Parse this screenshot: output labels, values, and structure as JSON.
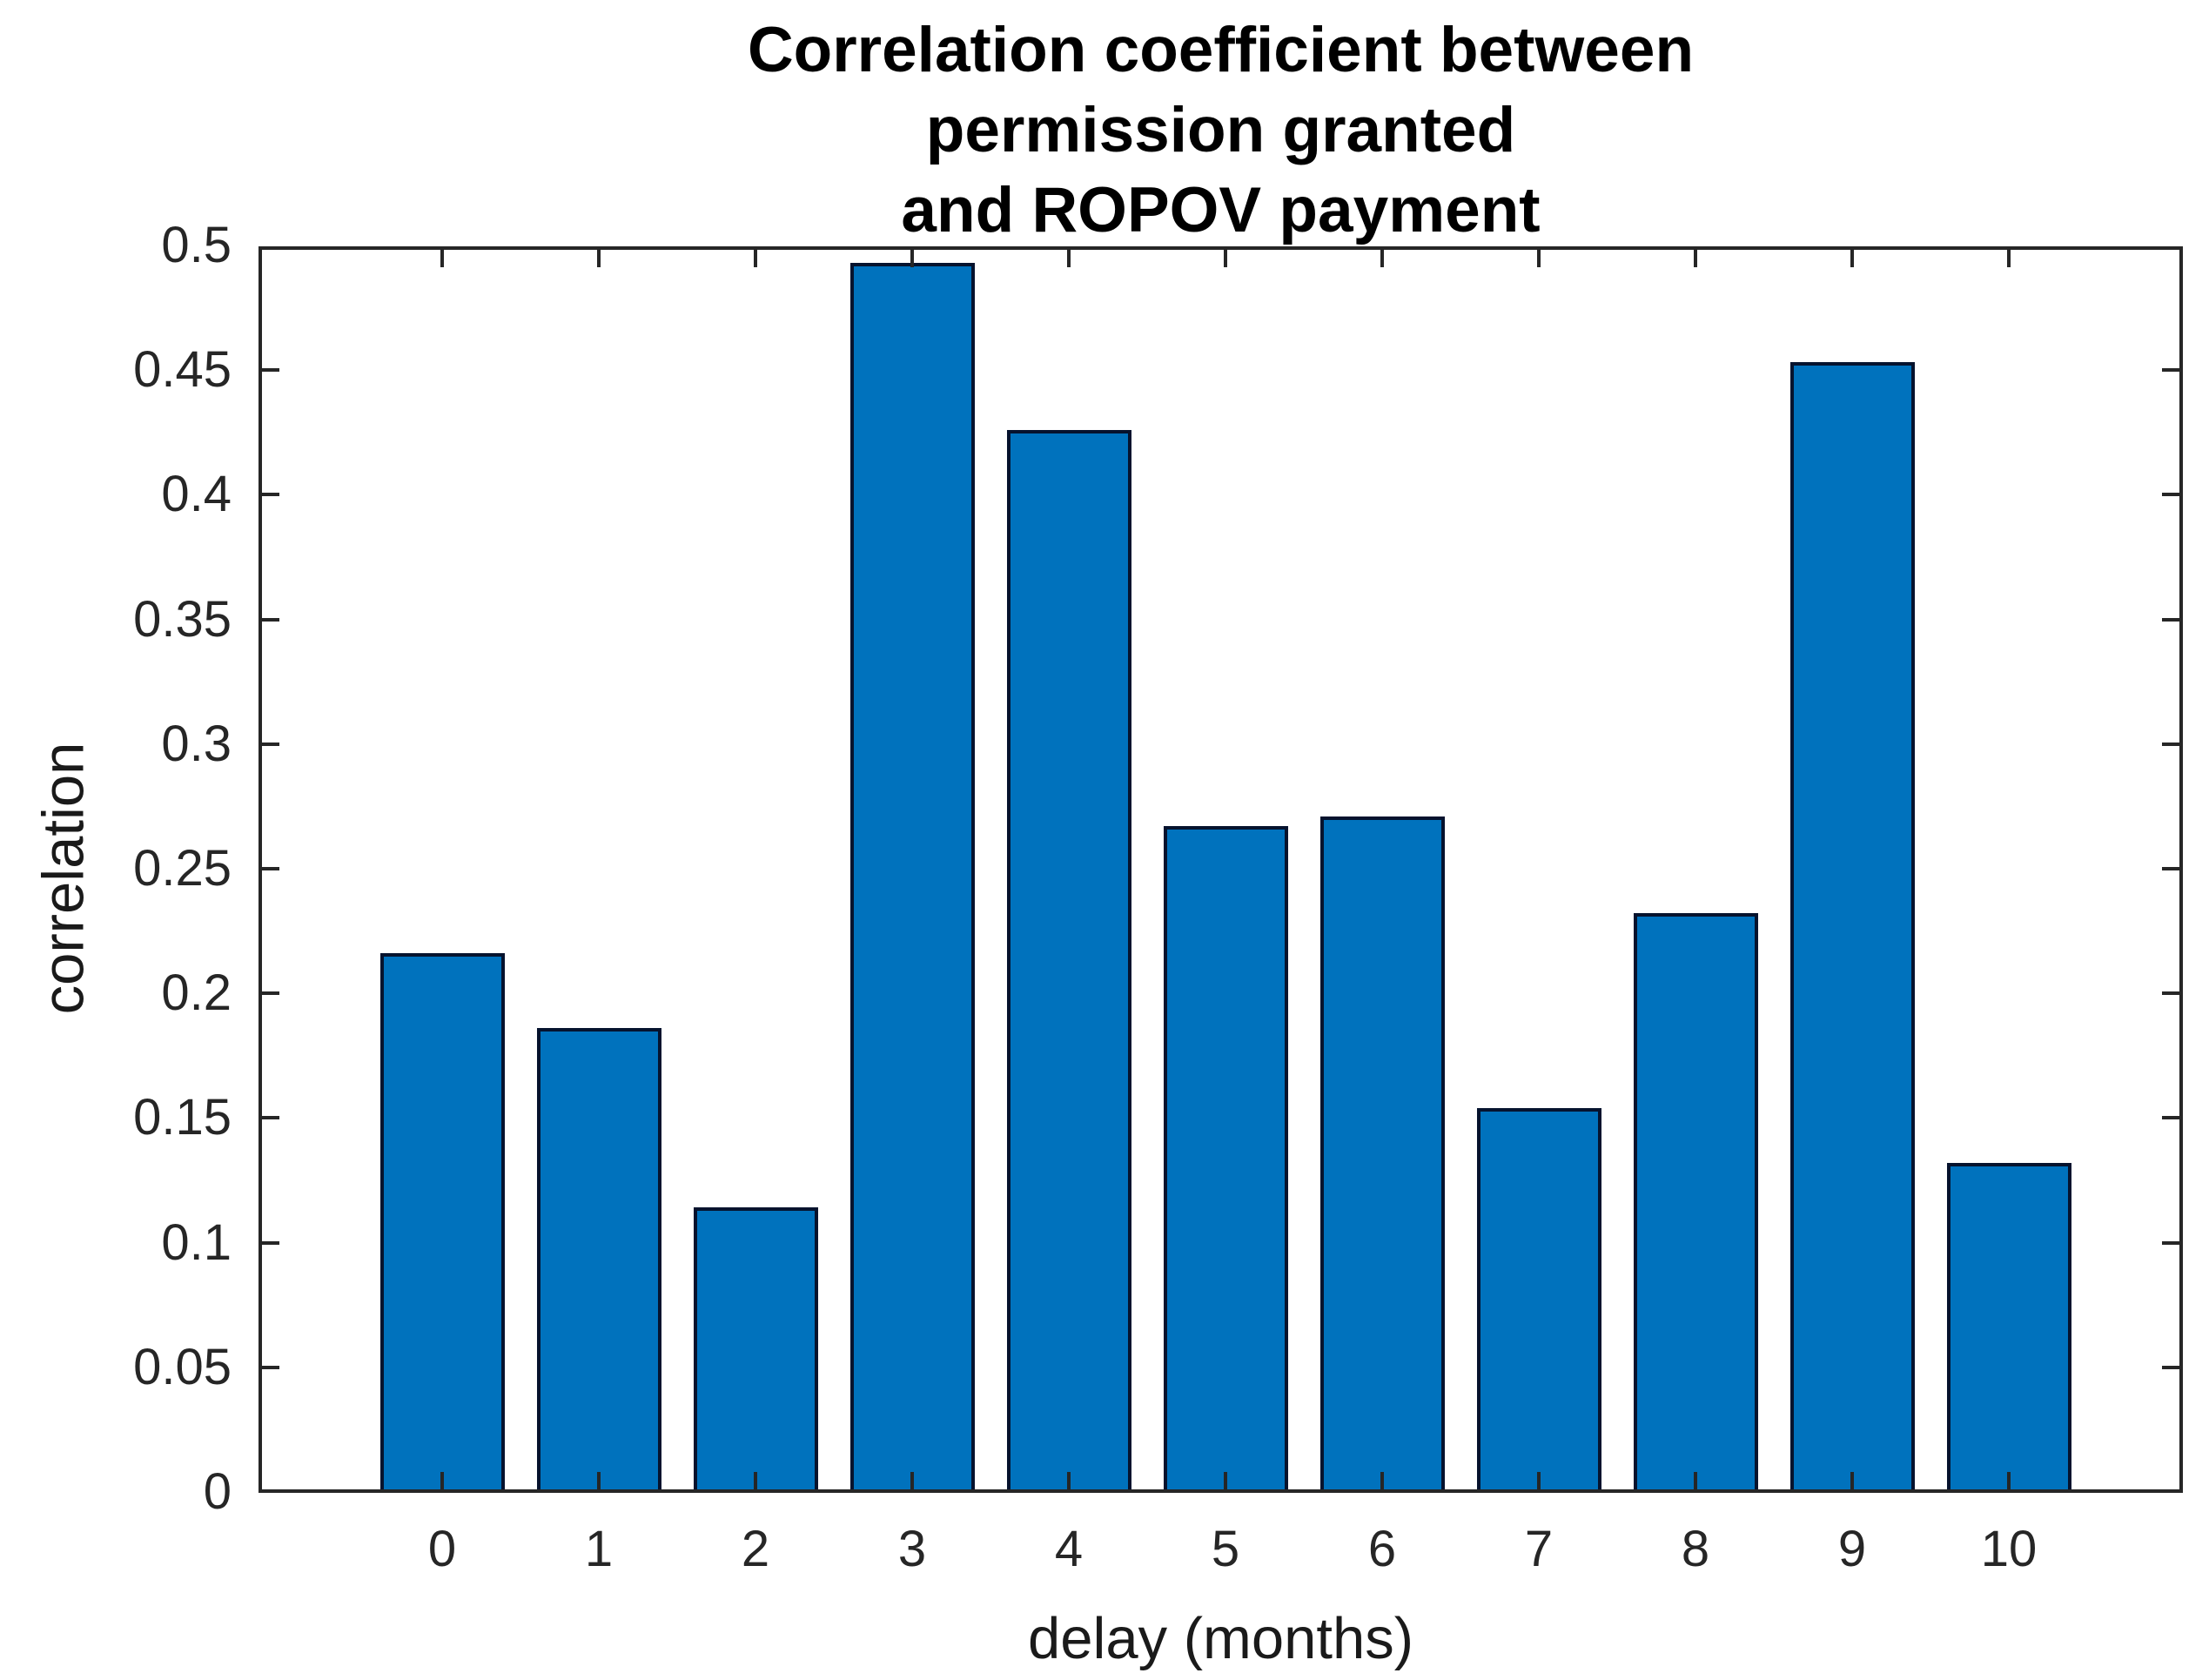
{
  "chart_data": {
    "type": "bar",
    "title_lines": [
      "Correlation coefficient between",
      "permission granted",
      "and ROPOV payment"
    ],
    "xlabel": "delay (months)",
    "ylabel": "correlation",
    "categories": [
      "0",
      "1",
      "2",
      "3",
      "4",
      "5",
      "6",
      "7",
      "8",
      "9",
      "10"
    ],
    "values": [
      0.215,
      0.185,
      0.113,
      0.492,
      0.425,
      0.266,
      0.27,
      0.153,
      0.231,
      0.452,
      0.131
    ],
    "ylim": [
      0,
      0.5
    ],
    "ytick_step": 0.05,
    "ytick_labels": [
      "0",
      "0.05",
      "0.1",
      "0.15",
      "0.2",
      "0.25",
      "0.3",
      "0.35",
      "0.4",
      "0.45",
      "0.5"
    ],
    "bar_color": "#0072BD",
    "bar_edge_color": "#06132e",
    "axis_color": "#262626",
    "background_color": "#ffffff",
    "grid": false,
    "legend": null
  }
}
